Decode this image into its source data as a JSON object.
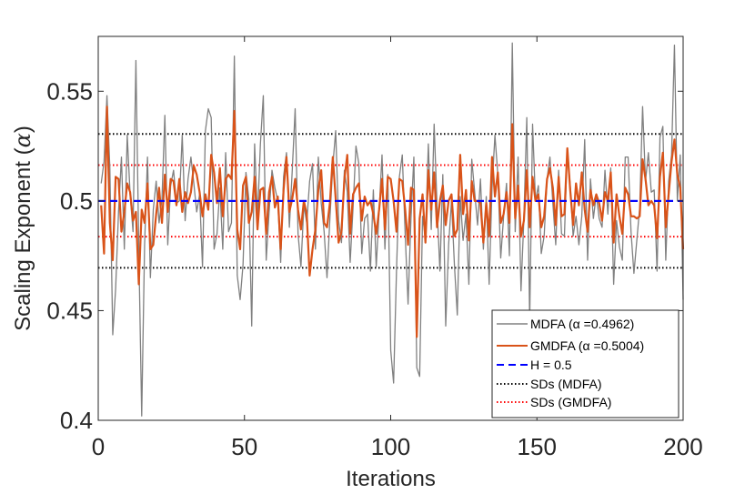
{
  "chart_data": {
    "type": "line",
    "xlabel": "Iterations",
    "ylabel_prefix": "Scaling Exponent (",
    "ylabel_symbol": "α",
    "ylabel_suffix": ")",
    "xlim": [
      0,
      200
    ],
    "ylim": [
      0.4,
      0.575
    ],
    "xticks": [
      0,
      50,
      100,
      150,
      200
    ],
    "xtick_labels": [
      "0",
      "50",
      "100",
      "150",
      "200"
    ],
    "yticks": [
      0.4,
      0.45,
      0.5,
      0.55
    ],
    "ytick_labels": [
      "0.4",
      "0.45",
      "0.5",
      "0.55"
    ],
    "grid": false,
    "legend_position": "bottom-right",
    "series": [
      {
        "name": "MDFA (α =0.4962)",
        "color": "#808080",
        "style": "solid",
        "values": [
          0.508,
          0.518,
          0.548,
          0.515,
          0.439,
          0.46,
          0.495,
          0.52,
          0.478,
          0.53,
          0.503,
          0.486,
          0.564,
          0.478,
          0.402,
          0.48,
          0.52,
          0.465,
          0.496,
          0.509,
          0.49,
          0.501,
          0.539,
          0.48,
          0.507,
          0.514,
          0.499,
          0.5,
          0.53,
          0.491,
          0.51,
          0.52,
          0.508,
          0.495,
          0.503,
          0.47,
          0.532,
          0.542,
          0.538,
          0.478,
          0.485,
          0.506,
          0.478,
          0.522,
          0.486,
          0.49,
          0.566,
          0.466,
          0.455,
          0.471,
          0.513,
          0.501,
          0.443,
          0.526,
          0.492,
          0.526,
          0.548,
          0.473,
          0.495,
          0.514,
          0.506,
          0.5,
          0.472,
          0.511,
          0.522,
          0.488,
          0.514,
          0.542,
          0.485,
          0.47,
          0.498,
          0.49,
          0.509,
          0.517,
          0.478,
          0.52,
          0.499,
          0.486,
          0.465,
          0.492,
          0.516,
          0.532,
          0.491,
          0.481,
          0.514,
          0.504,
          0.472,
          0.497,
          0.525,
          0.517,
          0.476,
          0.492,
          0.494,
          0.468,
          0.505,
          0.47,
          0.495,
          0.521,
          0.478,
          0.512,
          0.432,
          0.417,
          0.468,
          0.511,
          0.521,
          0.485,
          0.453,
          0.492,
          0.52,
          0.424,
          0.42,
          0.493,
          0.483,
          0.526,
          0.487,
          0.535,
          0.498,
          0.468,
          0.512,
          0.443,
          0.48,
          0.5,
          0.471,
          0.448,
          0.502,
          0.482,
          0.494,
          0.462,
          0.519,
          0.504,
          0.489,
          0.51,
          0.478,
          0.502,
          0.462,
          0.506,
          0.53,
          0.512,
          0.474,
          0.493,
          0.508,
          0.475,
          0.572,
          0.486,
          0.52,
          0.459,
          0.492,
          0.538,
          0.445,
          0.535,
          0.5,
          0.507,
          0.476,
          0.484,
          0.51,
          0.52,
          0.499,
          0.48,
          0.514,
          0.485,
          0.484,
          0.524,
          0.507,
          0.484,
          0.493,
          0.48,
          0.493,
          0.528,
          0.473,
          0.51,
          0.492,
          0.503,
          0.492,
          0.488,
          0.514,
          0.494,
          0.515,
          0.462,
          0.491,
          0.479,
          0.473,
          0.52,
          0.52,
          0.486,
          0.467,
          0.482,
          0.497,
          0.543,
          0.509,
          0.522,
          0.504,
          0.505,
          0.468,
          0.529,
          0.534,
          0.473,
          0.509,
          0.521,
          0.571,
          0.5,
          0.521,
          0.455
        ]
      },
      {
        "name": "GMDFA (α =0.5004)",
        "color": "#D95319",
        "style": "solid",
        "values": [
          0.498,
          0.476,
          0.543,
          0.49,
          0.473,
          0.511,
          0.51,
          0.486,
          0.495,
          0.508,
          0.504,
          0.491,
          0.495,
          0.462,
          0.496,
          0.49,
          0.508,
          0.478,
          0.48,
          0.494,
          0.506,
          0.49,
          0.512,
          0.495,
          0.51,
          0.509,
          0.498,
          0.51,
          0.495,
          0.504,
          0.499,
          0.504,
          0.516,
          0.512,
          0.504,
          0.493,
          0.503,
          0.496,
          0.521,
          0.513,
          0.499,
          0.515,
          0.493,
          0.51,
          0.512,
          0.51,
          0.541,
          0.487,
          0.478,
          0.507,
          0.511,
          0.49,
          0.495,
          0.511,
          0.487,
          0.505,
          0.506,
          0.485,
          0.504,
          0.511,
          0.497,
          0.502,
          0.478,
          0.505,
          0.52,
          0.495,
          0.501,
          0.51,
          0.496,
          0.487,
          0.5,
          0.494,
          0.466,
          0.478,
          0.487,
          0.505,
          0.514,
          0.49,
          0.488,
          0.499,
          0.52,
          0.501,
          0.481,
          0.486,
          0.51,
          0.521,
          0.485,
          0.503,
          0.506,
          0.508,
          0.491,
          0.502,
          0.498,
          0.5,
          0.494,
          0.485,
          0.496,
          0.51,
          0.487,
          0.511,
          0.51,
          0.5,
          0.486,
          0.51,
          0.509,
          0.496,
          0.48,
          0.506,
          0.505,
          0.438,
          0.492,
          0.503,
          0.481,
          0.514,
          0.496,
          0.513,
          0.488,
          0.5,
          0.507,
          0.489,
          0.5,
          0.503,
          0.484,
          0.487,
          0.521,
          0.494,
          0.505,
          0.482,
          0.509,
          0.5,
          0.5,
          0.499,
          0.481,
          0.499,
          0.484,
          0.52,
          0.502,
          0.513,
          0.49,
          0.494,
          0.504,
          0.49,
          0.535,
          0.492,
          0.507,
          0.484,
          0.491,
          0.514,
          0.488,
          0.511,
          0.5,
          0.503,
          0.488,
          0.493,
          0.51,
          0.515,
          0.506,
          0.489,
          0.511,
          0.493,
          0.494,
          0.524,
          0.505,
          0.489,
          0.508,
          0.498,
          0.513,
          0.496,
          0.486,
          0.505,
          0.498,
          0.503,
          0.499,
          0.491,
          0.504,
          0.5,
          0.513,
          0.481,
          0.503,
          0.493,
          0.485,
          0.506,
          0.503,
          0.493,
          0.493,
          0.492,
          0.493,
          0.519,
          0.51,
          0.498,
          0.5,
          0.498,
          0.483,
          0.511,
          0.522,
          0.488,
          0.503,
          0.518,
          0.528,
          0.512,
          0.506,
          0.478
        ]
      },
      {
        "name": "H = 0.5",
        "color": "#0000FF",
        "style": "dashed",
        "constant": 0.5
      },
      {
        "name": "SDs (MDFA)",
        "color": "#000000",
        "style": "dotted",
        "constants": [
          0.5305,
          0.4695
        ]
      },
      {
        "name": "SDs (GMDFA)",
        "color": "#FF0000",
        "style": "dotted",
        "constants": [
          0.5163,
          0.4837
        ]
      }
    ]
  }
}
